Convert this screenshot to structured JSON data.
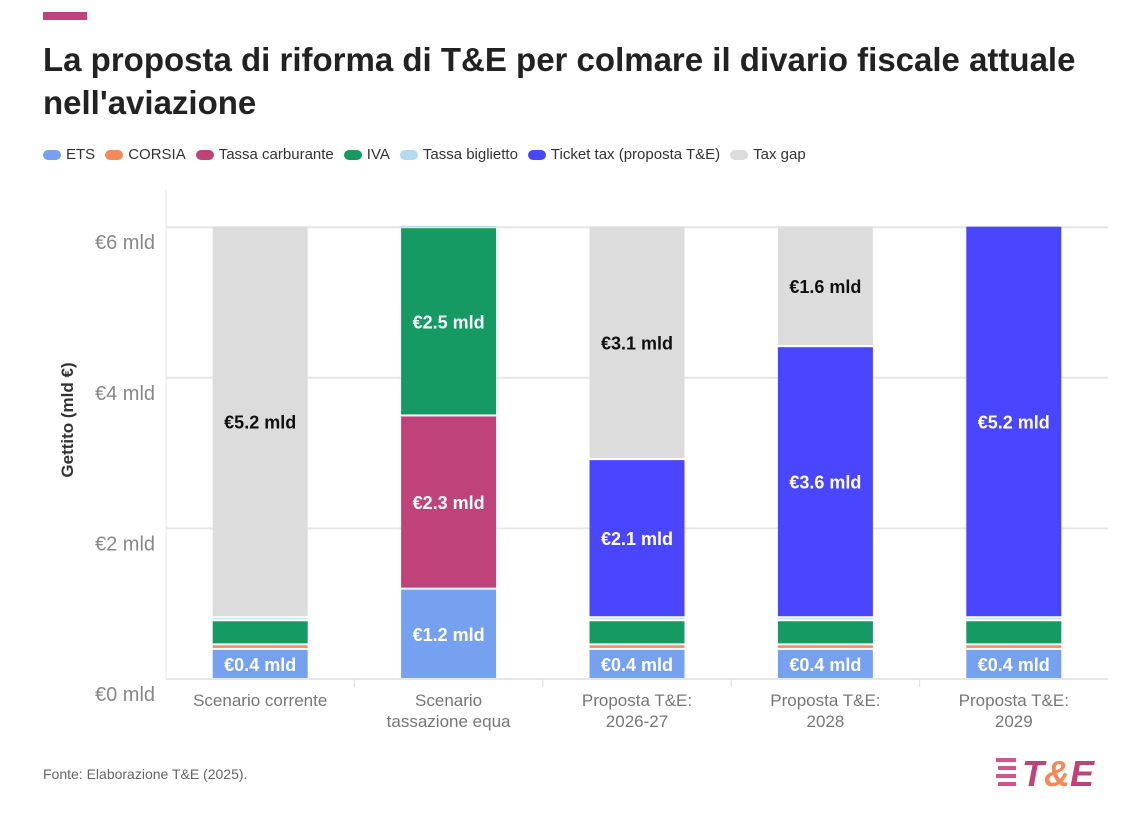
{
  "title": "La proposta di riforma di T&E per colmare il divario fiscale attuale nell'aviazione",
  "source": "Fonte: Elaborazione T&E (2025).",
  "logo_text": "T&E",
  "chart_data": {
    "type": "bar",
    "stacked": true,
    "ylabel": "Gettito (mld €)",
    "ylim": [
      0,
      6.6
    ],
    "yticks": [
      {
        "v": 0,
        "label": "€0 mld"
      },
      {
        "v": 2,
        "label": "€2 mld"
      },
      {
        "v": 4,
        "label": "€4 mld"
      },
      {
        "v": 6,
        "label": "€6 mld"
      }
    ],
    "grid": true,
    "legend_position": "top-left",
    "categories": [
      "Scenario corrente",
      "Scenario tassazione equa",
      "Proposta T&E: 2026-27",
      "Proposta T&E: 2028",
      "Proposta T&E: 2029"
    ],
    "category_lines": [
      [
        "Scenario corrente"
      ],
      [
        "Scenario",
        "tassazione equa"
      ],
      [
        "Proposta T&E:",
        "2026-27"
      ],
      [
        "Proposta T&E:",
        "2028"
      ],
      [
        "Proposta T&E:",
        "2029"
      ]
    ],
    "series": [
      {
        "name": "ETS",
        "color": "#76a1f1",
        "values": [
          0.4,
          1.2,
          0.4,
          0.4,
          0.4
        ],
        "labels": [
          "€0.4 mld",
          "€1.2 mld",
          "€0.4 mld",
          "€0.4 mld",
          "€0.4 mld"
        ],
        "label_color": "#fff"
      },
      {
        "name": "CORSIA",
        "color": "#f4895b",
        "values": [
          0.06,
          0,
          0.06,
          0.06,
          0.06
        ],
        "labels": [
          "",
          "",
          "",
          "",
          ""
        ]
      },
      {
        "name": "Tassa carburante",
        "color": "#c0427a",
        "values": [
          0,
          2.3,
          0,
          0,
          0
        ],
        "labels": [
          "",
          "€2.3 mld",
          "",
          "",
          ""
        ],
        "label_color": "#fff"
      },
      {
        "name": "IVA",
        "color": "#149a62",
        "values": [
          0.32,
          2.5,
          0.32,
          0.32,
          0.32
        ],
        "labels": [
          "",
          "€2.5 mld",
          "",
          "",
          ""
        ],
        "label_color": "#fff"
      },
      {
        "name": "Tassa biglietto",
        "color": "#b6d9f3",
        "values": [
          0.04,
          0.03,
          0.04,
          0.04,
          0.04
        ],
        "labels": [
          "",
          "",
          "",
          "",
          ""
        ]
      },
      {
        "name": "Ticket tax (proposta T&E)",
        "color": "#4a46ff",
        "values": [
          0,
          0,
          2.1,
          3.6,
          5.2
        ],
        "labels": [
          "",
          "",
          "€2.1 mld",
          "€3.6 mld",
          "€5.2 mld"
        ],
        "label_color": "#fff"
      },
      {
        "name": "Tax gap",
        "color": "#dcdcdc",
        "values": [
          5.2,
          0,
          3.1,
          1.6,
          0
        ],
        "labels": [
          "€5.2 mld",
          "",
          "€3.1 mld",
          "€1.6 mld",
          ""
        ],
        "label_color": "#111"
      }
    ]
  }
}
